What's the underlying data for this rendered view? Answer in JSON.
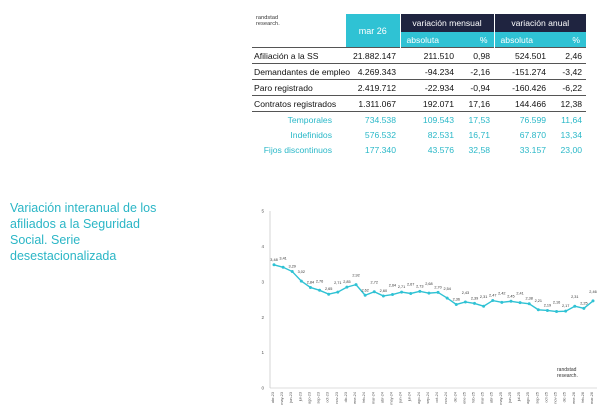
{
  "brand": {
    "line1": "randstad",
    "line2": "research."
  },
  "table": {
    "header": {
      "month": "mar 26",
      "group_monthly": "variación mensual",
      "group_annual": "variación anual",
      "abs": "absoluta",
      "pct": "%"
    },
    "rows": [
      {
        "label": "Afiliación a la SS",
        "value": "21.882.147",
        "m_abs": "211.510",
        "m_pct": "0,98",
        "a_abs": "524.501",
        "a_pct": "2,46"
      },
      {
        "label": "Demandantes de empleo",
        "value": "4.269.343",
        "m_abs": "-94.234",
        "m_pct": "-2,16",
        "a_abs": "-151.274",
        "a_pct": "-3,42"
      },
      {
        "label": "Paro registrado",
        "value": "2.419.712",
        "m_abs": "-22.934",
        "m_pct": "-0,94",
        "a_abs": "-160.426",
        "a_pct": "-6,22"
      },
      {
        "label": "Contratos registrados",
        "value": "1.311.067",
        "m_abs": "192.071",
        "m_pct": "17,16",
        "a_abs": "144.466",
        "a_pct": "12,38"
      },
      {
        "label": "Temporales",
        "value": "734.538",
        "m_abs": "109.543",
        "m_pct": "17,53",
        "a_abs": "76.599",
        "a_pct": "11,64"
      },
      {
        "label": "Indefinidos",
        "value": "576.532",
        "m_abs": "82.531",
        "m_pct": "16,71",
        "a_abs": "67.870",
        "a_pct": "13,34"
      },
      {
        "label": "Fijos discontinuos",
        "value": "177.340",
        "m_abs": "43.576",
        "m_pct": "32,58",
        "a_abs": "33.157",
        "a_pct": "23,00"
      }
    ]
  },
  "caption": "Variación interanual de los afiliados a la Seguridad Social. Serie desestacionalizada",
  "accent_color": "#2fc2d4",
  "dark_color": "#1f2440",
  "chart_data": {
    "type": "line",
    "title": "",
    "xlabel": "",
    "ylabel": "",
    "ylim": [
      0,
      5
    ],
    "yticks": [
      0,
      1,
      2,
      3,
      4,
      5
    ],
    "grid": false,
    "line_color": "#2fc2d4",
    "x": [
      "abr-23",
      "may-23",
      "jun-23",
      "jul-23",
      "ago-23",
      "sep-23",
      "oct-23",
      "nov-23",
      "dic-23",
      "ene-24",
      "feb-24",
      "mar-24",
      "abr-24",
      "may-24",
      "jun-24",
      "jul-24",
      "ago-24",
      "sep-24",
      "oct-24",
      "nov-24",
      "dic-24",
      "ene-25",
      "feb-25",
      "mar-25",
      "abr-25",
      "may-25",
      "jun-25",
      "jul-25",
      "ago-25",
      "sep-25",
      "oct-25",
      "nov-25",
      "dic-25",
      "ene-26",
      "feb-26",
      "mar-26"
    ],
    "series": [
      {
        "values": [
          3.48,
          3.41,
          3.29,
          3.02,
          2.84,
          2.76,
          2.65,
          2.71,
          2.85,
          2.92,
          2.62,
          2.72,
          2.6,
          2.64,
          2.71,
          2.67,
          2.73,
          2.68,
          2.7,
          2.54,
          2.36,
          2.43,
          2.39,
          2.31,
          2.47,
          2.42,
          2.45,
          2.41,
          2.38,
          2.21,
          2.19,
          2.16,
          2.17,
          2.31,
          2.25,
          2.46
        ],
        "labels": [
          "3,48",
          "3,41",
          "3,29",
          "3,02",
          "2,84",
          "2,76",
          "2,65",
          "2,71",
          "2,85",
          "2,92",
          "2,62",
          "2,72",
          "2,60",
          "2,64",
          "2,71",
          "2,67",
          "2,73",
          "2,68",
          "2,70",
          "2,54",
          "2,36",
          "2,43",
          "2,39",
          "2,31",
          "2,47",
          "2,42",
          "2,45",
          "2,41",
          "2,38",
          "2,21",
          "2,19",
          "2,16",
          "2,17",
          "2,31",
          "2,25",
          "2,46"
        ]
      }
    ]
  }
}
